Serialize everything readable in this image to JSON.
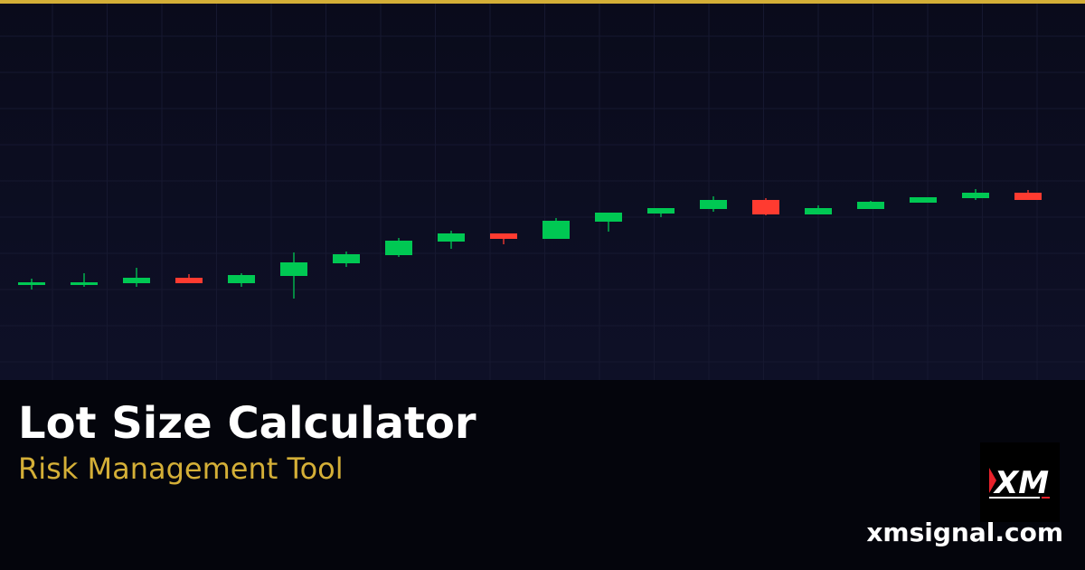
{
  "title": "Lot Size Calculator",
  "subtitle": "Risk Management Tool",
  "domain": "xmsignal.com",
  "logo_text": "XM",
  "colors": {
    "accent": "#d4af37",
    "bullish": "#00c853",
    "bearish": "#ff3b30",
    "background": "#0a0b1b"
  },
  "chart_data": {
    "type": "candlestick",
    "grid": true,
    "candles": [
      {
        "o": 105,
        "c": 108,
        "h": 112,
        "l": 100
      },
      {
        "o": 105,
        "c": 108,
        "h": 118,
        "l": 103
      },
      {
        "o": 107,
        "c": 113,
        "h": 124,
        "l": 103
      },
      {
        "o": 113,
        "c": 107,
        "h": 117,
        "l": 107
      },
      {
        "o": 107,
        "c": 116,
        "h": 118,
        "l": 103
      },
      {
        "o": 115,
        "c": 130,
        "h": 141,
        "l": 90
      },
      {
        "o": 129,
        "c": 139,
        "h": 142,
        "l": 125
      },
      {
        "o": 138,
        "c": 154,
        "h": 157,
        "l": 136
      },
      {
        "o": 153,
        "c": 162,
        "h": 165,
        "l": 145
      },
      {
        "o": 162,
        "c": 156,
        "h": 162,
        "l": 150
      },
      {
        "o": 156,
        "c": 176,
        "h": 179,
        "l": 156
      },
      {
        "o": 175,
        "c": 185,
        "h": 185,
        "l": 164
      },
      {
        "o": 184,
        "c": 190,
        "h": 190,
        "l": 180
      },
      {
        "o": 189,
        "c": 199,
        "h": 203,
        "l": 186
      },
      {
        "o": 199,
        "c": 183,
        "h": 201,
        "l": 182
      },
      {
        "o": 183,
        "c": 190,
        "h": 193,
        "l": 183
      },
      {
        "o": 189,
        "c": 197,
        "h": 198,
        "l": 189
      },
      {
        "o": 196,
        "c": 202,
        "h": 202,
        "l": 196
      },
      {
        "o": 201,
        "c": 207,
        "h": 211,
        "l": 199
      },
      {
        "o": 207,
        "c": 199,
        "h": 210,
        "l": 199
      }
    ]
  }
}
